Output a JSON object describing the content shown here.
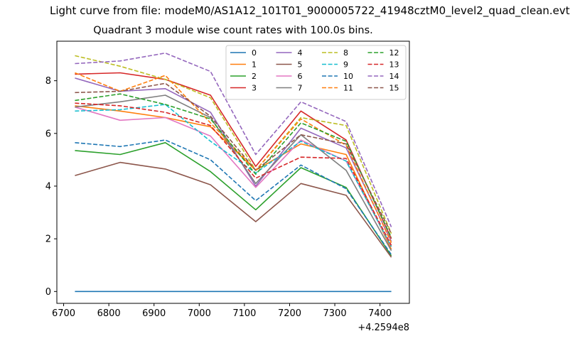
{
  "suptitle": "Light curve from file: modeM0/AS1A12_101T01_9000005722_41948cztM0_level2_quad_clean.evt",
  "chart_data": {
    "type": "line",
    "title": "Quadrant 3 module wise count rates with 100.0s bins.",
    "xlabel": "",
    "ylabel": "",
    "x_offset_label": "+4.2594e8",
    "x": [
      6725,
      6825,
      6925,
      7025,
      7125,
      7225,
      7325,
      7425
    ],
    "xlim": [
      6685,
      7465
    ],
    "ylim": [
      -0.45,
      9.5
    ],
    "xticks": [
      6700,
      6800,
      6900,
      7000,
      7100,
      7200,
      7300,
      7400
    ],
    "yticks": [
      0,
      2,
      4,
      6,
      8
    ],
    "legend_position": "top-right",
    "series": [
      {
        "name": "0",
        "color": "#1f77b4",
        "dash": "solid",
        "values": [
          0.0,
          0.0,
          0.0,
          0.0,
          0.0,
          0.0,
          0.0,
          0.0
        ]
      },
      {
        "name": "1",
        "color": "#ff7f0e",
        "dash": "solid",
        "values": [
          7.05,
          6.85,
          6.6,
          6.25,
          4.6,
          5.6,
          5.2,
          1.6
        ]
      },
      {
        "name": "2",
        "color": "#2ca02c",
        "dash": "solid",
        "values": [
          5.35,
          5.2,
          5.65,
          4.55,
          3.1,
          4.7,
          3.95,
          1.35
        ]
      },
      {
        "name": "3",
        "color": "#d62728",
        "dash": "solid",
        "values": [
          8.25,
          8.3,
          8.05,
          7.45,
          4.75,
          6.85,
          5.75,
          2.0
        ]
      },
      {
        "name": "4",
        "color": "#9467bd",
        "dash": "solid",
        "values": [
          8.1,
          7.6,
          7.7,
          6.8,
          4.0,
          6.2,
          5.45,
          1.9
        ]
      },
      {
        "name": "5",
        "color": "#8c564b",
        "dash": "solid",
        "values": [
          4.4,
          4.9,
          4.65,
          4.05,
          2.65,
          4.1,
          3.65,
          1.3
        ]
      },
      {
        "name": "6",
        "color": "#e377c2",
        "dash": "solid",
        "values": [
          7.0,
          6.5,
          6.6,
          5.9,
          3.95,
          5.75,
          4.95,
          1.7
        ]
      },
      {
        "name": "7",
        "color": "#7f7f7f",
        "dash": "solid",
        "values": [
          7.0,
          7.2,
          7.45,
          6.6,
          4.1,
          5.95,
          4.6,
          1.55
        ]
      },
      {
        "name": "8",
        "color": "#bcbd22",
        "dash": "dashed",
        "values": [
          8.95,
          8.55,
          8.05,
          7.35,
          4.6,
          6.6,
          6.3,
          2.2
        ]
      },
      {
        "name": "9",
        "color": "#17becf",
        "dash": "dashed",
        "values": [
          6.85,
          6.9,
          7.1,
          5.7,
          4.5,
          5.7,
          4.95,
          1.7
        ]
      },
      {
        "name": "10",
        "color": "#1f77b4",
        "dash": "dashed",
        "values": [
          5.65,
          5.5,
          5.75,
          5.0,
          3.45,
          4.8,
          3.9,
          1.4
        ]
      },
      {
        "name": "11",
        "color": "#ff7f0e",
        "dash": "dashed",
        "values": [
          8.3,
          7.6,
          8.2,
          6.4,
          4.6,
          6.55,
          5.55,
          1.85
        ]
      },
      {
        "name": "12",
        "color": "#2ca02c",
        "dash": "dashed",
        "values": [
          7.25,
          7.5,
          7.1,
          6.55,
          4.45,
          6.4,
          5.7,
          2.05
        ]
      },
      {
        "name": "13",
        "color": "#d62728",
        "dash": "dashed",
        "values": [
          7.15,
          7.05,
          6.8,
          6.3,
          4.3,
          5.1,
          5.05,
          1.75
        ]
      },
      {
        "name": "14",
        "color": "#9467bd",
        "dash": "dashed",
        "values": [
          8.65,
          8.75,
          9.05,
          8.35,
          5.2,
          7.2,
          6.45,
          2.45
        ]
      },
      {
        "name": "15",
        "color": "#8c564b",
        "dash": "dashed",
        "values": [
          7.55,
          7.6,
          7.9,
          6.65,
          4.6,
          5.95,
          5.6,
          2.2
        ]
      }
    ]
  }
}
